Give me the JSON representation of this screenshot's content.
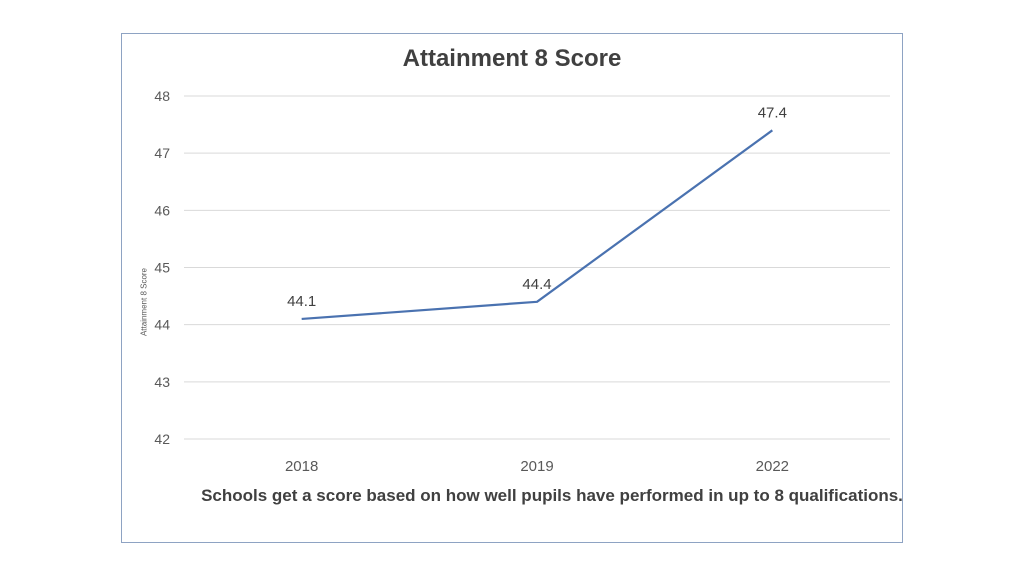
{
  "chart_data": {
    "type": "line",
    "title": "Attainment 8 Score",
    "xlabel": "",
    "ylabel": "Attainment  8 Score",
    "categories": [
      "2018",
      "2019",
      "2022"
    ],
    "series": [
      {
        "values": [
          44.1,
          44.4,
          47.4
        ]
      }
    ],
    "data_labels": [
      "44.1",
      "44.4",
      "47.4"
    ],
    "yticks": [
      42,
      43,
      44,
      45,
      46,
      47,
      48
    ],
    "ylim": [
      42,
      48
    ],
    "grid": "horizontal",
    "legend": "none",
    "line_color": "#4a72b0",
    "caption": "Schools get a score based on how well pupils have performed in up to 8 qualifications."
  }
}
